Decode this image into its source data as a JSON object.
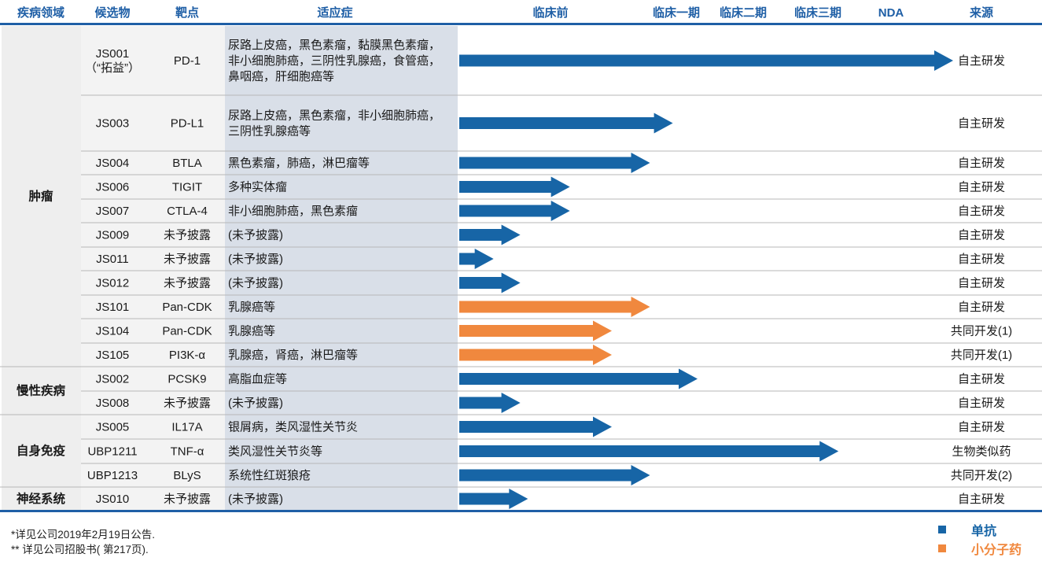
{
  "header": {
    "area": "疾病领域",
    "candidate": "候选物",
    "target": "靶点",
    "indication": "适应症",
    "stages": [
      "临床前",
      "临床一期",
      "临床二期",
      "临床三期",
      "NDA"
    ],
    "source": "来源"
  },
  "chart_data": {
    "type": "bar",
    "title": "",
    "stage_scale": {
      "临床前": 0,
      "临床一期": 3,
      "临床二期": 4,
      "临床三期": 5,
      "NDA": 6
    },
    "series": [
      {
        "name": "单抗",
        "color": "#1765a6"
      },
      {
        "name": "小分子药",
        "color": "#f0883e"
      }
    ],
    "rows": [
      {
        "candidate": [
          "JS001",
          "（“拓益”）"
        ],
        "target": "PD-1",
        "indication": [
          "尿路上皮癌，黑色素瘤，黏膜黑色素瘤，",
          "非小细胞肺癌，三阴性乳腺癌，食管癌，",
          "鼻咽癌，肝细胞癌等"
        ],
        "progress": 6.0,
        "series": "单抗",
        "source": "自主研发"
      },
      {
        "candidate": [
          "JS003"
        ],
        "target": "PD-L1",
        "indication": [
          "尿路上皮癌，黑色素瘤，非小细胞肺癌，",
          "三阴性乳腺癌等"
        ],
        "progress": 2.8,
        "series": "单抗",
        "source": "自主研发"
      },
      {
        "candidate": [
          "JS004"
        ],
        "target": "BTLA",
        "indication": [
          "黑色素瘤，肺癌，淋巴瘤等"
        ],
        "progress": 2.5,
        "series": "单抗",
        "source": "自主研发"
      },
      {
        "candidate": [
          "JS006"
        ],
        "target": "TIGIT",
        "indication": [
          "多种实体瘤"
        ],
        "progress": 1.45,
        "series": "单抗",
        "source": "自主研发"
      },
      {
        "candidate": [
          "JS007"
        ],
        "target": "CTLA-4",
        "indication": [
          "非小细胞肺癌，黑色素瘤"
        ],
        "progress": 1.45,
        "series": "单抗",
        "source": "自主研发"
      },
      {
        "candidate": [
          "JS009"
        ],
        "target": "未予披露",
        "indication": [
          "(未予披露)"
        ],
        "progress": 0.8,
        "series": "单抗",
        "source": "自主研发"
      },
      {
        "candidate": [
          "JS011"
        ],
        "target": "未予披露",
        "indication": [
          "(未予披露)"
        ],
        "progress": 0.45,
        "series": "单抗",
        "source": "自主研发"
      },
      {
        "candidate": [
          "JS012"
        ],
        "target": "未予披露",
        "indication": [
          "(未予披露)"
        ],
        "progress": 0.8,
        "series": "单抗",
        "source": "自主研发"
      },
      {
        "candidate": [
          "JS101"
        ],
        "target": "Pan-CDK",
        "indication": [
          "乳腺癌等"
        ],
        "progress": 2.5,
        "series": "小分子药",
        "source": "自主研发"
      },
      {
        "candidate": [
          "JS104"
        ],
        "target": "Pan-CDK",
        "indication": [
          "乳腺癌等"
        ],
        "progress": 2.0,
        "series": "小分子药",
        "source": "共同开发(1)"
      },
      {
        "candidate": [
          "JS105"
        ],
        "target": "PI3K-α",
        "indication": [
          "乳腺癌，肾癌，淋巴瘤等"
        ],
        "progress": 2.0,
        "series": "小分子药",
        "source": "共同开发(1)"
      },
      {
        "candidate": [
          "JS002"
        ],
        "target": "PCSK9",
        "indication": [
          "高脂血症等"
        ],
        "progress": 3.15,
        "series": "单抗",
        "source": "自主研发"
      },
      {
        "candidate": [
          "JS008"
        ],
        "target": "未予披露",
        "indication": [
          "(未予披露)"
        ],
        "progress": 0.8,
        "series": "单抗",
        "source": "自主研发"
      },
      {
        "candidate": [
          "JS005"
        ],
        "target": "IL17A",
        "indication": [
          "银屑病，类风湿性关节炎"
        ],
        "progress": 2.0,
        "series": "单抗",
        "source": "自主研发"
      },
      {
        "candidate": [
          "UBP1211"
        ],
        "target": "TNF-α",
        "indication": [
          "类风湿性关节炎等"
        ],
        "progress": 5.1,
        "series": "单抗",
        "source": "生物类似药"
      },
      {
        "candidate": [
          "UBP1213"
        ],
        "target": "BLyS",
        "indication": [
          "系统性红斑狼疮"
        ],
        "progress": 2.5,
        "series": "单抗",
        "source": "共同开发(2)"
      },
      {
        "candidate": [
          "JS010"
        ],
        "target": "未予披露",
        "indication": [
          "(未予披露)"
        ],
        "progress": 0.9,
        "series": "单抗",
        "source": "自主研发"
      }
    ],
    "areas": [
      {
        "label": "肿瘤",
        "first_row": 0,
        "last_row": 10
      },
      {
        "label": "慢性疾病",
        "first_row": 11,
        "last_row": 12
      },
      {
        "label": "自身免疫",
        "first_row": 13,
        "last_row": 15
      },
      {
        "label": "神经系统",
        "first_row": 16,
        "last_row": 16
      }
    ]
  },
  "footnotes": [
    "*详见公司2019年2月19日公告.",
    "** 详见公司招股书( 第217页)."
  ],
  "legend": [
    {
      "label": "单抗",
      "color": "#1765a6"
    },
    {
      "label": "小分子药",
      "color": "#f0883e"
    }
  ],
  "colors": {
    "header_text": "#1f5fa6",
    "rule": "#1f5fa6",
    "area_bg": "#eeeeee",
    "indication_bg": "#d9dfe8",
    "row_line": "#b7b7b7"
  }
}
